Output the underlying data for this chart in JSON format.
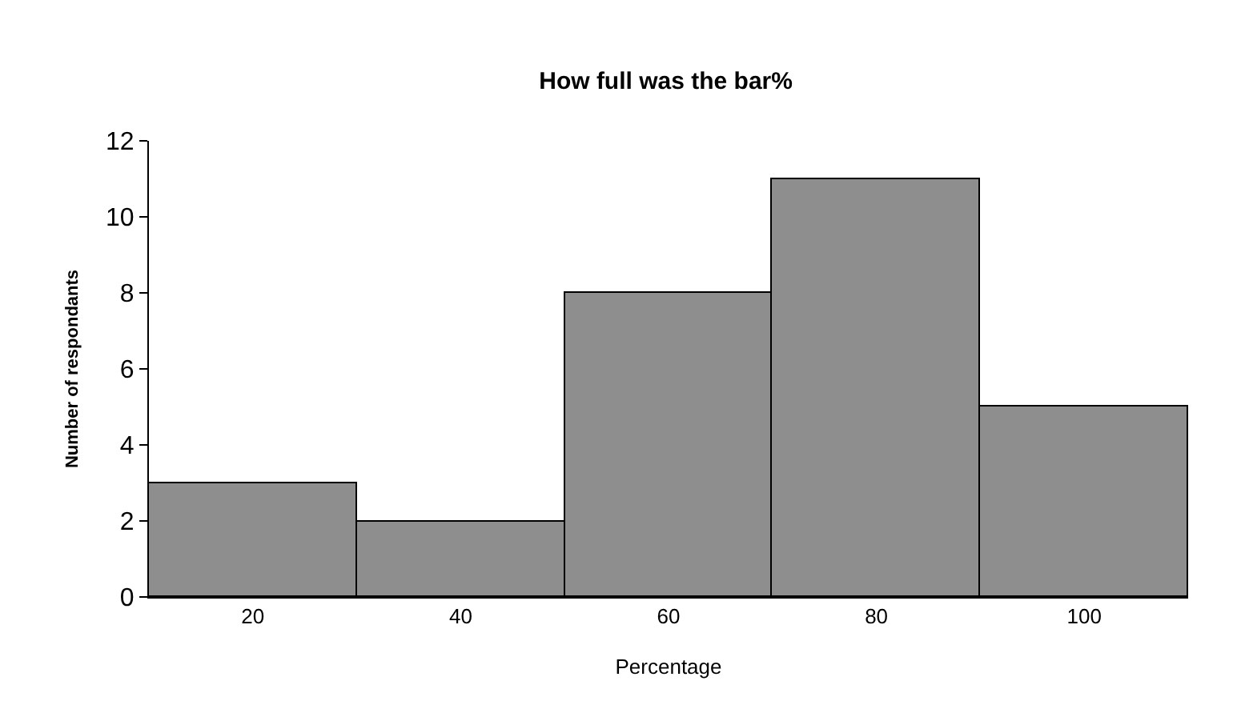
{
  "chart_data": {
    "type": "bar",
    "title": "How full was the bar%",
    "xlabel": "Percentage",
    "ylabel": "Number of respondants",
    "categories": [
      "20",
      "40",
      "60",
      "80",
      "100"
    ],
    "values": [
      3,
      2,
      8,
      11,
      5
    ],
    "color": "#8e8e8e",
    "ylim": [
      0,
      12
    ],
    "yticks": [
      0,
      2,
      4,
      6,
      8,
      10,
      12
    ]
  }
}
